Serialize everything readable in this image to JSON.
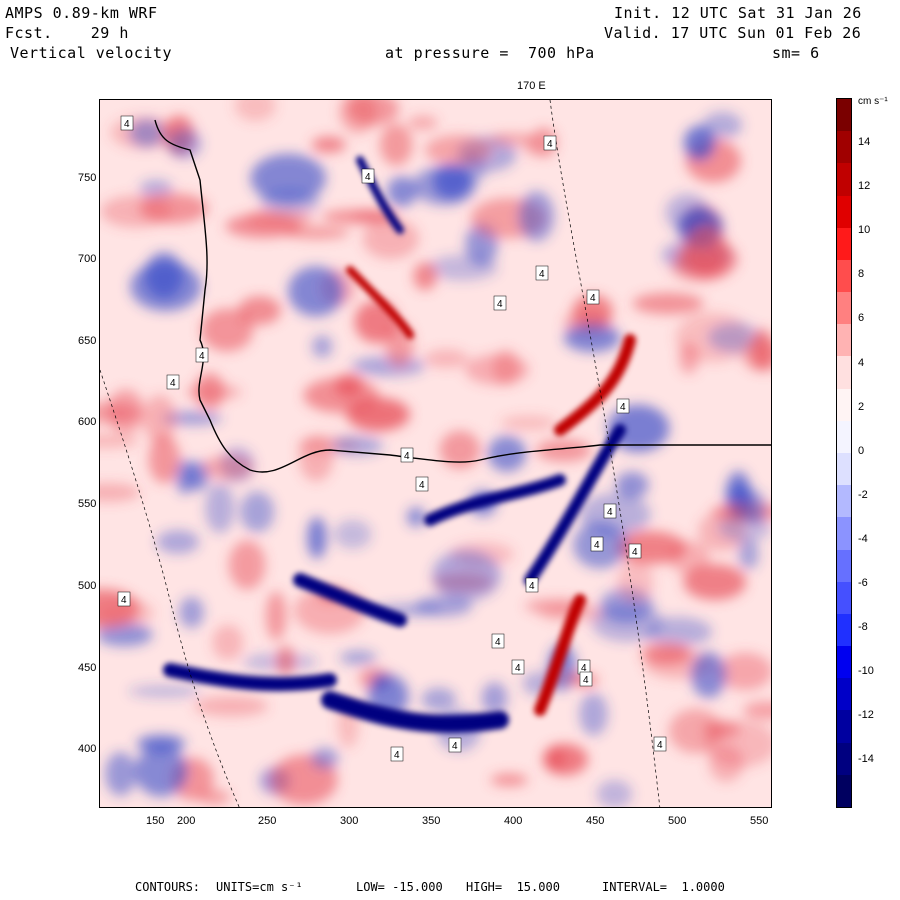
{
  "header": {
    "model": "AMPS 0.89-km WRF",
    "forecast": "Fcst.    29 h",
    "field": "Vertical velocity",
    "init": "Init. 12 UTC Sat 31 Jan 26",
    "valid": "Valid. 17 UTC Sun 01 Feb 26",
    "pressure": "at pressure =  700 hPa",
    "smoothing": "sm= 6",
    "meridian": "170 E"
  },
  "x_axis": {
    "ticks": [
      "150",
      "200",
      "250",
      "300",
      "350",
      "400",
      "450",
      "500",
      "550"
    ],
    "range": [
      147,
      556
    ]
  },
  "y_axis": {
    "ticks": [
      "750",
      "700",
      "650",
      "600",
      "550",
      "500",
      "450",
      "400"
    ],
    "range": [
      363,
      797
    ]
  },
  "colorbar": {
    "units": "cm s⁻¹",
    "labels": [
      "14",
      "12",
      "10",
      "8",
      "6",
      "4",
      "2",
      "0",
      "-2",
      "-4",
      "-6",
      "-8",
      "-10",
      "-12",
      "-14"
    ],
    "colors": [
      "#7a0000",
      "#a00000",
      "#c00000",
      "#e00000",
      "#ff1a1a",
      "#ff4d4d",
      "#ff8080",
      "#ffb3b3",
      "#ffe0e0",
      "#fff4f4",
      "#f4f4ff",
      "#dde0ff",
      "#b3b9ff",
      "#8b93ff",
      "#6670ff",
      "#4550ff",
      "#2030ff",
      "#0000f0",
      "#0000c8",
      "#0000a0",
      "#000080",
      "#000060"
    ]
  },
  "footer": {
    "contours_label": "CONTOURS:",
    "units_label": "UNITS=cm s⁻¹",
    "low": "LOW= -15.000",
    "high": "HIGH=  15.000",
    "interval": "INTERVAL=  1.0000"
  },
  "map": {
    "contour_label": "4",
    "background": "#ffe4e4",
    "positive_color": "#e8505a",
    "negative_color": "#3348c8"
  }
}
